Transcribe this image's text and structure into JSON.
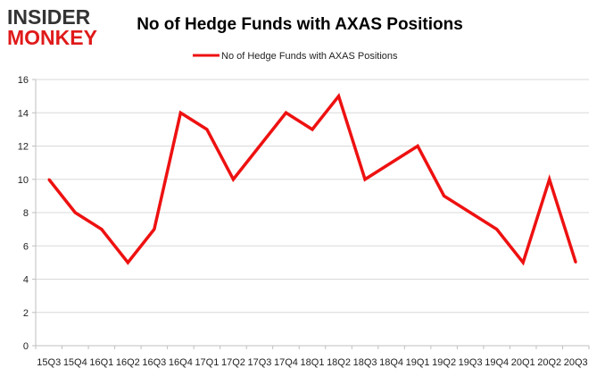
{
  "logo": {
    "line1": "INSIDER",
    "line2": "MONKEY"
  },
  "colors": {
    "series": "#ee1111",
    "grid": "#d9d9d9",
    "axis": "#bfbfbf",
    "logo_dark": "#333333",
    "logo_red": "#e01a1a"
  },
  "chart_data": {
    "type": "line",
    "title": "No of Hedge Funds with AXAS Positions",
    "xlabel": "",
    "ylabel": "",
    "ylim": [
      0,
      16
    ],
    "yticks": [
      0,
      2,
      4,
      6,
      8,
      10,
      12,
      14,
      16
    ],
    "grid": true,
    "legend_position": "top-center",
    "categories": [
      "15Q3",
      "15Q4",
      "16Q1",
      "16Q2",
      "16Q3",
      "16Q4",
      "17Q1",
      "17Q2",
      "17Q3",
      "17Q4",
      "18Q1",
      "18Q2",
      "18Q3",
      "18Q4",
      "19Q1",
      "19Q2",
      "19Q3",
      "19Q4",
      "20Q1",
      "20Q2",
      "20Q3"
    ],
    "series": [
      {
        "name": "No of Hedge Funds with AXAS Positions",
        "values": [
          10,
          8,
          7,
          5,
          7,
          14,
          13,
          10,
          12,
          14,
          13,
          15,
          10,
          11,
          12,
          9,
          8,
          7,
          5,
          10,
          5
        ]
      }
    ]
  }
}
